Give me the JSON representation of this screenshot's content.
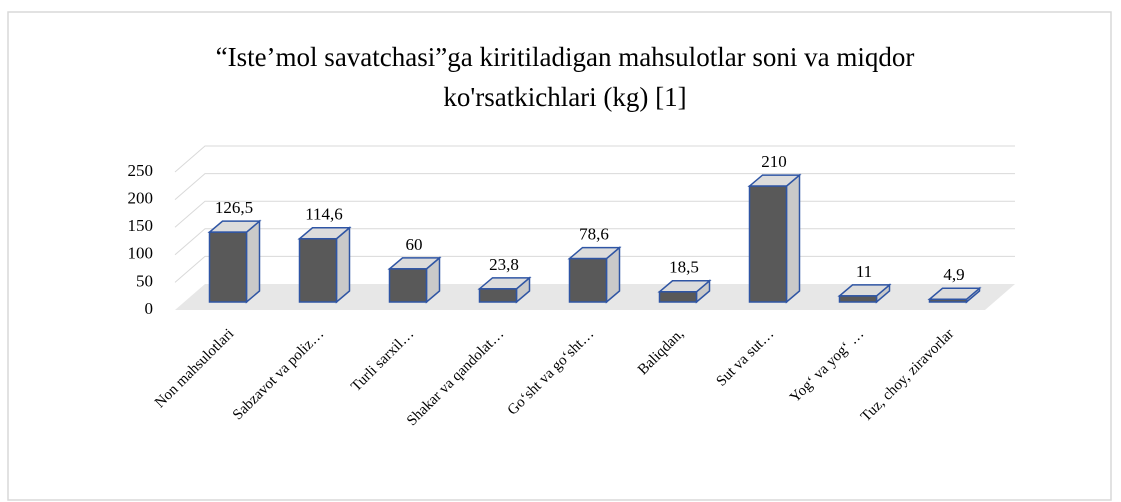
{
  "chart_data": {
    "type": "bar3d",
    "title": [
      "“Iste’mol savatchasi”ga kiritiladigan  mahsulotlar soni va miqdor",
      "ko'rsatkichlari  (kg) [1]"
    ],
    "categories": [
      "Non mahsulotlari",
      "Sabzavot va poliz…",
      "Turli sarxil…",
      "Shakar va qandolat…",
      "Go‘sht va go‘sht…",
      "Baliqdan,",
      "Sut va sut…",
      "Yog‘ va yog‘ …",
      "Tuz, choy, ziravorlar"
    ],
    "values": [
      126.5,
      114.6,
      60,
      23.8,
      78.6,
      18.5,
      210,
      11,
      4.9
    ],
    "value_labels": [
      "126,5",
      "114,6",
      "60",
      "23,8",
      "78,6",
      "18,5",
      "210",
      "11",
      "4,9"
    ],
    "ylim": [
      0,
      250
    ],
    "yticks": [
      0,
      50,
      100,
      150,
      200,
      250
    ],
    "grid": true,
    "color": "#595959",
    "edge_color": "#2f55a4"
  }
}
